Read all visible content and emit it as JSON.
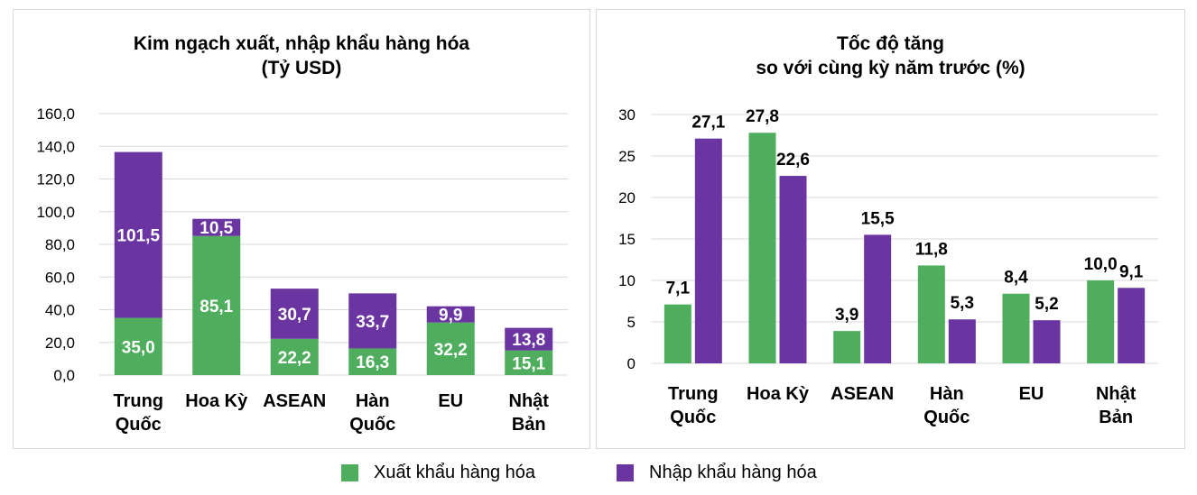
{
  "colors": {
    "export": "#4fae5d",
    "import": "#6a35a0",
    "grid": "#d9d9d9"
  },
  "legend": {
    "export_label": "Xuất khẩu hàng hóa",
    "import_label": "Nhập khẩu hàng hóa"
  },
  "chart_data": [
    {
      "type": "bar",
      "stacked": true,
      "title_line1": "Kim ngạch xuất, nhập khẩu hàng hóa",
      "title_line2": "(Tỷ USD)",
      "categories": [
        [
          "Trung",
          "Quốc"
        ],
        [
          "Hoa Kỳ"
        ],
        [
          "ASEAN"
        ],
        [
          "Hàn",
          "Quốc"
        ],
        [
          "EU"
        ],
        [
          "Nhật",
          "Bản"
        ]
      ],
      "series": [
        {
          "key": "export",
          "values": [
            35.0,
            85.1,
            22.2,
            16.3,
            32.2,
            15.1
          ],
          "labels": [
            "35,0",
            "85,1",
            "22,2",
            "16,3",
            "32,2",
            "15,1"
          ]
        },
        {
          "key": "import",
          "values": [
            101.5,
            10.5,
            30.7,
            33.7,
            9.9,
            13.8
          ],
          "labels": [
            "101,5",
            "10,5",
            "30,7",
            "33,7",
            "9,9",
            "13,8"
          ]
        }
      ],
      "ylim": [
        0,
        160
      ],
      "yticks": [
        "0,0",
        "20,0",
        "40,0",
        "60,0",
        "80,0",
        "100,0",
        "120,0",
        "140,0",
        "160,0"
      ],
      "grid": true
    },
    {
      "type": "bar",
      "stacked": false,
      "title_line1": "Tốc độ tăng",
      "title_line2": "so với cùng kỳ năm trước (%)",
      "categories": [
        [
          "Trung",
          "Quốc"
        ],
        [
          "Hoa Kỳ"
        ],
        [
          "ASEAN"
        ],
        [
          "Hàn",
          "Quốc"
        ],
        [
          "EU"
        ],
        [
          "Nhật",
          "Bản"
        ]
      ],
      "series": [
        {
          "key": "export",
          "values": [
            7.1,
            27.8,
            3.9,
            11.8,
            8.4,
            10.0
          ],
          "labels": [
            "7,1",
            "27,8",
            "3,9",
            "11,8",
            "8,4",
            "10,0"
          ]
        },
        {
          "key": "import",
          "values": [
            27.1,
            22.6,
            15.5,
            5.3,
            5.2,
            9.1
          ],
          "labels": [
            "27,1",
            "22,6",
            "15,5",
            "5,3",
            "5,2",
            "9,1"
          ]
        }
      ],
      "ylim": [
        0,
        30
      ],
      "yticks": [
        "0",
        "5",
        "10",
        "15",
        "20",
        "25",
        "30"
      ],
      "grid": true
    }
  ]
}
